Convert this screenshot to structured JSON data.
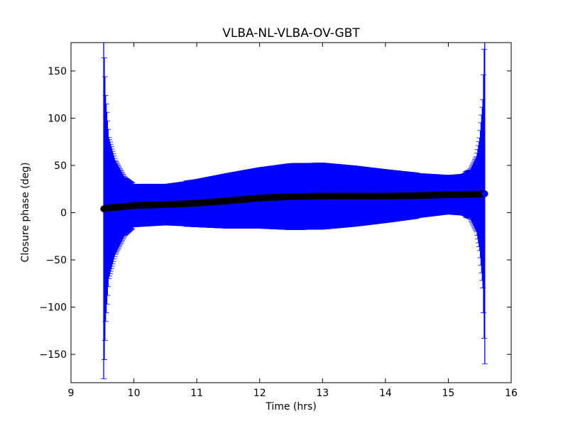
{
  "chart_data": {
    "type": "scatter",
    "title": "VLBA-NL-VLBA-OV-GBT",
    "xlabel": "Time (hrs)",
    "ylabel": "Closure phase (deg)",
    "xlim": [
      9,
      16
    ],
    "ylim": [
      -180,
      180
    ],
    "xticks": [
      9,
      10,
      11,
      12,
      13,
      14,
      15,
      16
    ],
    "xtick_labels": [
      "9",
      "10",
      "11",
      "12",
      "13",
      "14",
      "15",
      "16"
    ],
    "yticks": [
      -150,
      -100,
      -50,
      0,
      50,
      100,
      150
    ],
    "ytick_labels": [
      "−150",
      "−100",
      "−50",
      "0",
      "50",
      "100",
      "150"
    ],
    "grid": false,
    "colors": {
      "errorbar": "#0000ff",
      "points": "#000000"
    },
    "series": [
      {
        "x_range": [
          9.52,
          15.58
        ],
        "profile": [
          {
            "x": 9.52,
            "y": 4,
            "err": 180
          },
          {
            "x": 9.55,
            "y": 4.5,
            "err": 120
          },
          {
            "x": 9.6,
            "y": 5,
            "err": 75
          },
          {
            "x": 9.7,
            "y": 5.5,
            "err": 50
          },
          {
            "x": 9.85,
            "y": 6.5,
            "err": 31
          },
          {
            "x": 10.0,
            "y": 7.5,
            "err": 23
          },
          {
            "x": 10.5,
            "y": 8.5,
            "err": 22
          },
          {
            "x": 11.0,
            "y": 10,
            "err": 25
          },
          {
            "x": 11.5,
            "y": 12.5,
            "err": 29
          },
          {
            "x": 12.0,
            "y": 15.5,
            "err": 32
          },
          {
            "x": 12.5,
            "y": 17,
            "err": 35
          },
          {
            "x": 13.0,
            "y": 17.5,
            "err": 35
          },
          {
            "x": 13.5,
            "y": 17.5,
            "err": 32
          },
          {
            "x": 14.0,
            "y": 17.5,
            "err": 28
          },
          {
            "x": 14.5,
            "y": 18,
            "err": 24
          },
          {
            "x": 15.0,
            "y": 19,
            "err": 21
          },
          {
            "x": 15.2,
            "y": 19,
            "err": 22
          },
          {
            "x": 15.35,
            "y": 19.5,
            "err": 26
          },
          {
            "x": 15.45,
            "y": 19.5,
            "err": 40
          },
          {
            "x": 15.5,
            "y": 19.5,
            "err": 60
          },
          {
            "x": 15.55,
            "y": 20,
            "err": 100
          },
          {
            "x": 15.58,
            "y": 20,
            "err": 180
          }
        ]
      }
    ]
  }
}
